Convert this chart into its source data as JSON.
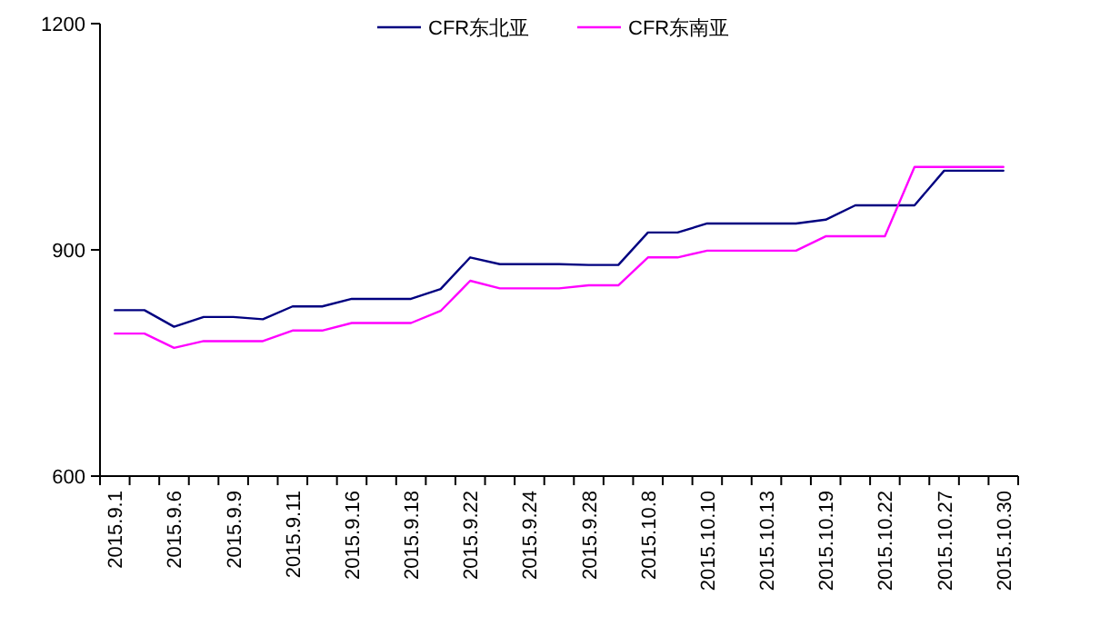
{
  "chart_data": {
    "type": "line",
    "categories": [
      "2015.9.1",
      null,
      "2015.9.6",
      null,
      "2015.9.9",
      null,
      "2015.9.11",
      null,
      "2015.9.16",
      null,
      "2015.9.18",
      null,
      "2015.9.22",
      null,
      "2015.9.24",
      null,
      "2015.9.28",
      null,
      "2015.10.8",
      null,
      "2015.10.10",
      null,
      "2015.10.13",
      null,
      "2015.10.19",
      null,
      "2015.10.22",
      null,
      "2015.10.27",
      null,
      "2015.10.30"
    ],
    "series": [
      {
        "name": "CFR东北亚",
        "color": "#000080",
        "values": [
          820,
          820,
          798,
          811,
          811,
          808,
          825,
          825,
          835,
          835,
          835,
          848,
          890,
          881,
          881,
          881,
          880,
          880,
          923,
          923,
          935,
          935,
          935,
          935,
          940,
          959,
          959,
          959,
          1005,
          1005,
          1005
        ]
      },
      {
        "name": "CFR东南亚",
        "color": "#ff00ff",
        "values": [
          789,
          789,
          770,
          779,
          779,
          779,
          793,
          793,
          803,
          803,
          803,
          819,
          859,
          849,
          849,
          849,
          853,
          853,
          890,
          890,
          899,
          899,
          899,
          899,
          918,
          918,
          918,
          1010,
          1010,
          1010,
          1010
        ]
      }
    ],
    "ylim": [
      600,
      1200
    ],
    "yticks": [
      600,
      900,
      1200
    ],
    "grid": false,
    "legend": "top",
    "marker": "none",
    "line_style": "solid"
  }
}
